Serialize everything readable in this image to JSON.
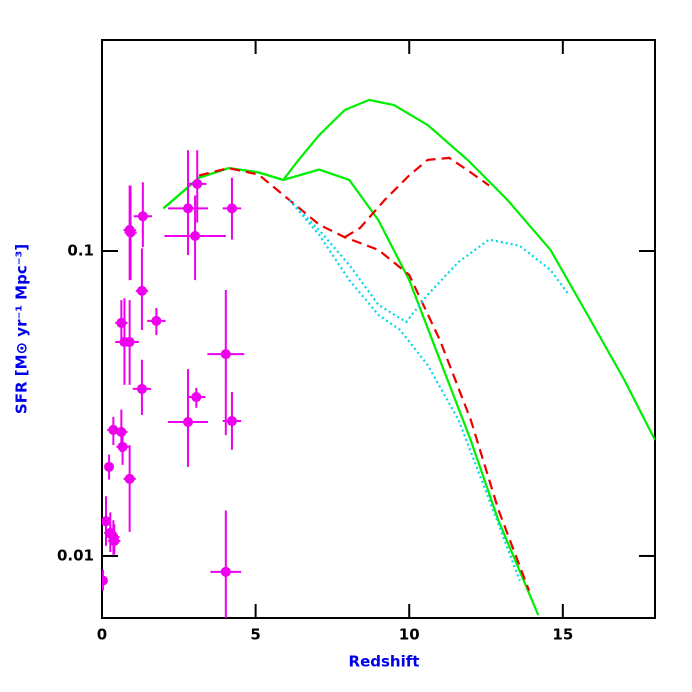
{
  "chart_data": {
    "type": "line",
    "xlabel": "Redshift",
    "ylabel": "SFR [M⊙ yr⁻¹ Mpc⁻³]",
    "xlim": [
      0,
      18
    ],
    "ylim": [
      0.00626,
      0.492
    ],
    "log_y": true,
    "xticks": [
      0,
      5,
      10,
      15
    ],
    "yticks": [
      0.01,
      0.1
    ],
    "series": [
      {
        "color": "#00ee00",
        "style": "solid",
        "x": [
          2.0,
          3.16,
          4.13,
          5.1,
          5.9,
          7.07,
          8.05,
          9.0,
          10,
          11,
          12,
          12.9,
          14.2
        ],
        "values": [
          0.138,
          0.174,
          0.187,
          0.181,
          0.171,
          0.185,
          0.171,
          0.126,
          0.0803,
          0.0439,
          0.024,
          0.0131,
          0.0064
        ]
      },
      {
        "color": "#00ee00",
        "style": "solid",
        "x": [
          2.0,
          3.16,
          4.13,
          5.1,
          5.9,
          6.4,
          7.07,
          7.9,
          8.7,
          9.5,
          10.6,
          11.9,
          13.2,
          14.6,
          15.9,
          17.0,
          18
        ],
        "values": [
          0.138,
          0.174,
          0.187,
          0.181,
          0.171,
          0.199,
          0.24,
          0.29,
          0.313,
          0.301,
          0.259,
          0.199,
          0.147,
          0.1008,
          0.0594,
          0.0378,
          0.024
        ]
      },
      {
        "color": "#ee0000",
        "style": "dashed",
        "x": [
          3.16,
          4.13,
          5.1,
          6.1,
          7.07,
          7.9,
          9.0,
          10,
          11,
          12,
          12.9,
          13.9
        ],
        "values": [
          0.177,
          0.187,
          0.178,
          0.147,
          0.122,
          0.111,
          0.1008,
          0.0835,
          0.051,
          0.028,
          0.0142,
          0.0077
        ]
      },
      {
        "color": "#ee0000",
        "style": "dashed",
        "x": [
          7.9,
          8.4,
          9.2,
          10,
          10.6,
          11.3,
          11.9,
          12.6
        ],
        "values": [
          0.111,
          0.119,
          0.147,
          0.177,
          0.199,
          0.202,
          0.184,
          0.164
        ]
      },
      {
        "color": "#00d8e8",
        "style": "dotted",
        "x": [
          6.1,
          7.07,
          8.05,
          9.0,
          9.9,
          10.6,
          11.6,
          12.6,
          13.6,
          14.6,
          15.2
        ],
        "values": [
          0.147,
          0.117,
          0.09,
          0.0666,
          0.0585,
          0.0718,
          0.092,
          0.109,
          0.104,
          0.0866,
          0.0718
        ]
      },
      {
        "color": "#00d8e8",
        "style": "dotted",
        "x": [
          6.1,
          7.07,
          8.05,
          9.0,
          9.7,
          10.6,
          11.6,
          12.6,
          13.6
        ],
        "values": [
          0.147,
          0.113,
          0.0803,
          0.0617,
          0.0551,
          0.0423,
          0.028,
          0.0153,
          0.0083
        ]
      }
    ],
    "points": {
      "color": "#ee00ee",
      "x": [
        0.03,
        0.13,
        0.23,
        0.27,
        0.37,
        0.4,
        0.37,
        0.63,
        0.67,
        0.63,
        0.73,
        0.9,
        0.9,
        0.9,
        0.93,
        1.3,
        1.33,
        1.3,
        1.77,
        2.8,
        2.8,
        3.03,
        3.07,
        3.1,
        4.23,
        4.03,
        4.23,
        4.03
      ],
      "values": [
        0.0083,
        0.013,
        0.0196,
        0.0119,
        0.01154,
        0.0112,
        0.0259,
        0.0255,
        0.0228,
        0.0581,
        0.0503,
        0.0503,
        0.0179,
        0.1172,
        0.115,
        0.074,
        0.13,
        0.0353,
        0.059,
        0.138,
        0.0275,
        0.112,
        0.0332,
        0.166,
        0.138,
        0.0459,
        0.0277,
        0.00887
      ],
      "xerr": [
        0.05,
        0.1,
        0.1,
        0.2,
        0.2,
        0.2,
        0.2,
        0.2,
        0.2,
        0.2,
        0.3,
        0.3,
        0.2,
        0.2,
        0.2,
        0.2,
        0.3,
        0.3,
        0.3,
        0.65,
        0.65,
        1.0,
        0.3,
        0.3,
        0.3,
        0.6,
        0.3,
        0.5
      ],
      "y_low": [
        0.0077,
        0.0108,
        0.0178,
        0.0103,
        0.0101,
        0.0101,
        0.0231,
        0.0219,
        0.0199,
        0.049,
        0.0364,
        0.0364,
        0.012,
        0.0803,
        0.0803,
        0.0551,
        0.103,
        0.029,
        0.053,
        0.097,
        0.0196,
        0.0803,
        0.0306,
        0.124,
        0.109,
        0.0249,
        0.0223,
        0.0057
      ],
      "y_high": [
        0.009,
        0.0157,
        0.0215,
        0.0139,
        0.0131,
        0.0127,
        0.0286,
        0.0302,
        0.0259,
        0.069,
        0.07,
        0.069,
        0.0231,
        0.164,
        0.164,
        0.102,
        0.168,
        0.044,
        0.065,
        0.214,
        0.041,
        0.152,
        0.0356,
        0.214,
        0.174,
        0.0745,
        0.0345,
        0.0141
      ]
    }
  }
}
